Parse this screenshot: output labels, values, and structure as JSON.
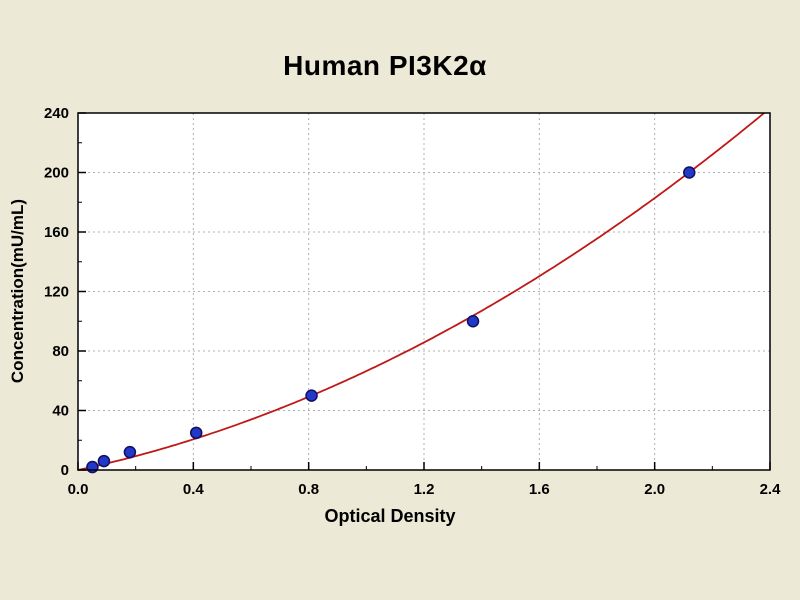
{
  "title": "Human PI3K2α",
  "chart_data": {
    "type": "scatter",
    "title": "Human PI3K2α",
    "xlabel": "Optical Density",
    "ylabel": "Concentration(mU/mL)",
    "xlim": [
      0.0,
      2.4
    ],
    "ylim": [
      0,
      240
    ],
    "x_ticks": [
      0.0,
      0.4,
      0.8,
      1.2,
      1.6,
      2.0,
      2.4
    ],
    "x_tick_labels": [
      "0.0",
      "0.4",
      "0.8",
      "1.2",
      "1.6",
      "2.0",
      "2.4"
    ],
    "y_ticks": [
      0,
      40,
      80,
      120,
      160,
      200,
      240
    ],
    "y_tick_labels": [
      "0",
      "40",
      "80",
      "120",
      "160",
      "200",
      "240"
    ],
    "x_minor_step": 0.2,
    "y_minor_step": 20,
    "grid": true,
    "grid_style": "dashed",
    "legend": "none",
    "points": [
      [
        0.05,
        2
      ],
      [
        0.09,
        6
      ],
      [
        0.18,
        12
      ],
      [
        0.41,
        25
      ],
      [
        0.81,
        50
      ],
      [
        1.37,
        100
      ],
      [
        2.12,
        200
      ]
    ],
    "curve_fit": {
      "type": "quadratic",
      "a": 41.6,
      "b": 24.9
    },
    "colors": {
      "background": "#ece9d6",
      "plot_bg": "#ffffff",
      "grid": "#b2b2b2",
      "curve": "#c01818",
      "point_fill": "#2238c8",
      "point_edge": "#101060",
      "axis": "#000000"
    }
  }
}
